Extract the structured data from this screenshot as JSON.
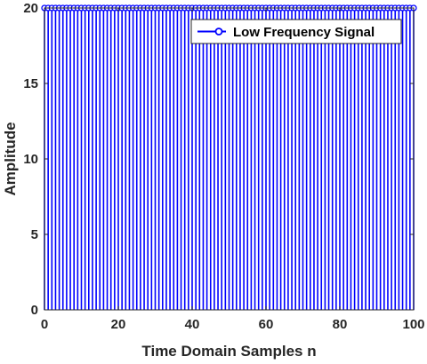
{
  "chart_data": {
    "type": "stem",
    "title": "",
    "xlabel": "Time Domain Samples n",
    "ylabel": "Amplitude",
    "xlim": [
      0,
      100
    ],
    "ylim": [
      0,
      20
    ],
    "x_ticks": [
      "0",
      "20",
      "40",
      "60",
      "80",
      "100"
    ],
    "y_ticks": [
      "0",
      "5",
      "10",
      "15",
      "20"
    ],
    "grid": false,
    "legend_position": "top-right",
    "series": [
      {
        "name": "Low Frequency Signal",
        "color": "#0000ff",
        "marker": "circle",
        "x_start": 0,
        "x_end": 100,
        "x_step": 1,
        "constant_value": 20
      }
    ]
  }
}
